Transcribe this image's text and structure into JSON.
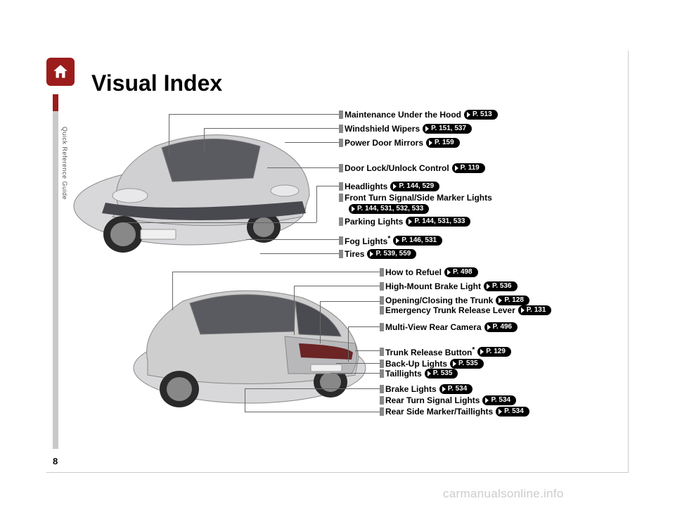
{
  "page": {
    "title": "Visual Index",
    "sideLabel": "Quick Reference Guide",
    "pageNumber": "8",
    "watermark": "carmanualsonline.info"
  },
  "colors": {
    "accent": "#9c1c1c",
    "grayTab": "#c9c9c9",
    "pillBg": "#000000",
    "pillText": "#ffffff",
    "text": "#000000",
    "watermark": "#cccccc"
  },
  "front": [
    {
      "label": "Maintenance Under the Hood",
      "page": "P. 513"
    },
    {
      "label": "Windshield Wipers",
      "page": "P. 151, 537"
    },
    {
      "label": "Power Door Mirrors",
      "page": "P. 159"
    },
    {
      "label": "Door Lock/Unlock Control",
      "page": "P. 119"
    },
    {
      "label": "Headlights",
      "page": "P. 144, 529"
    },
    {
      "label": "Front Turn Signal/Side Marker Lights",
      "page": "P. 144, 531, 532, 533"
    },
    {
      "label": "Parking Lights",
      "page": "P. 144, 531, 533"
    },
    {
      "label": "Fog Lights",
      "star": true,
      "page": "P. 146, 531"
    },
    {
      "label": "Tires",
      "page": "P. 539, 559"
    }
  ],
  "rear": [
    {
      "label": "How to Refuel",
      "page": "P. 498"
    },
    {
      "label": "High-Mount Brake Light",
      "page": "P. 536"
    },
    {
      "label": "Opening/Closing the Trunk",
      "page": "P. 128"
    },
    {
      "label": "Emergency Trunk Release Lever",
      "page": "P. 131"
    },
    {
      "label": "Multi-View Rear Camera",
      "page": "P. 496"
    },
    {
      "label": "Trunk Release Button",
      "star": true,
      "page": "P. 129"
    },
    {
      "label": "Back-Up Lights",
      "page": "P. 535"
    },
    {
      "label": "Taillights",
      "page": "P. 535"
    },
    {
      "label": "Brake Lights",
      "page": "P. 534"
    },
    {
      "label": "Rear Turn Signal Lights",
      "page": "P. 534"
    },
    {
      "label": "Rear Side Marker/Taillights",
      "page": "P. 534"
    }
  ],
  "layout": {
    "frontLabelsX": 382,
    "frontLabelsY": [
      8,
      28,
      48,
      84,
      110,
      126,
      160,
      186,
      206
    ],
    "frontPillBelow": {
      "5": true
    },
    "rearLabelsX": 440,
    "rearLabelsY": [
      232,
      252,
      272,
      286,
      310,
      344,
      362,
      376,
      398,
      414,
      430
    ]
  }
}
